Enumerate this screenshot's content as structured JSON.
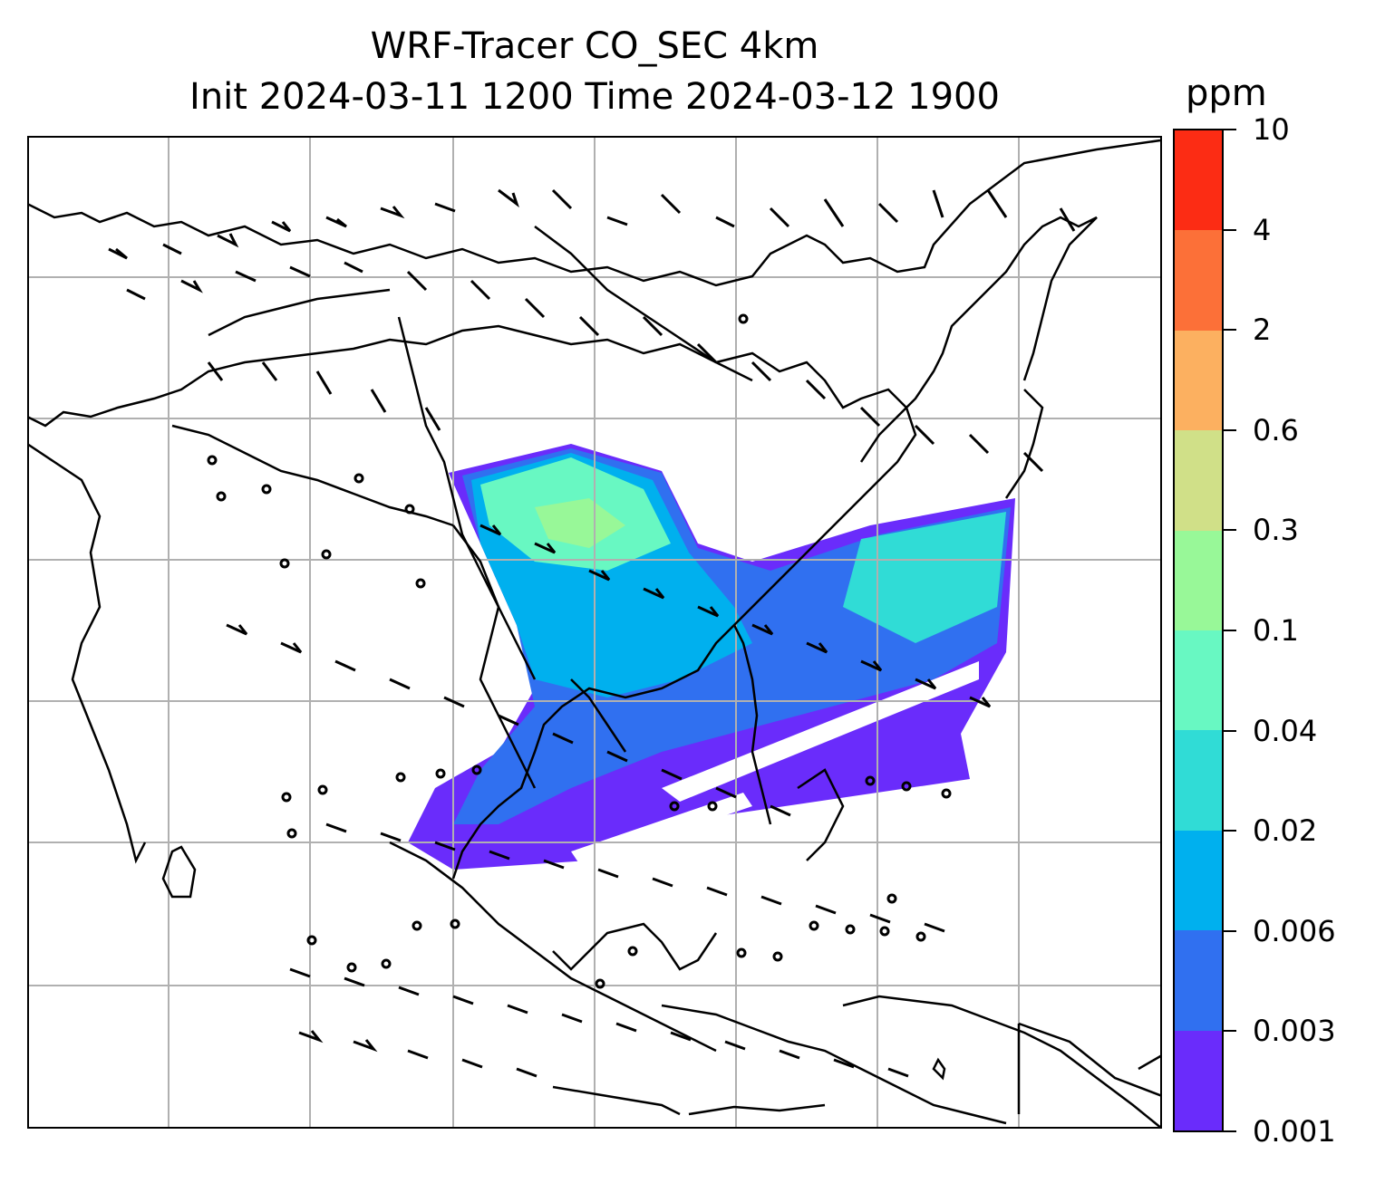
{
  "title": {
    "line1": "WRF-Tracer CO_SEC 4km",
    "line2": "Init 2024-03-11 1200 Time 2024-03-12 1900"
  },
  "colorbar": {
    "unit": "ppm",
    "levels": [
      "0.001",
      "0.003",
      "0.006",
      "0.02",
      "0.04",
      "0.1",
      "0.3",
      "0.6",
      "2",
      "4",
      "10"
    ],
    "colors": [
      "#6a2cfb",
      "#3070f0",
      "#00b0ee",
      "#30dcd6",
      "#68f8c2",
      "#98f898",
      "#d0e088",
      "#fcb060",
      "#fc7038",
      "#fc2c14"
    ]
  },
  "map": {
    "gridlines": true,
    "features": [
      "coastlines",
      "country-borders",
      "wind-barbs",
      "tracer-concentration-fill"
    ]
  }
}
